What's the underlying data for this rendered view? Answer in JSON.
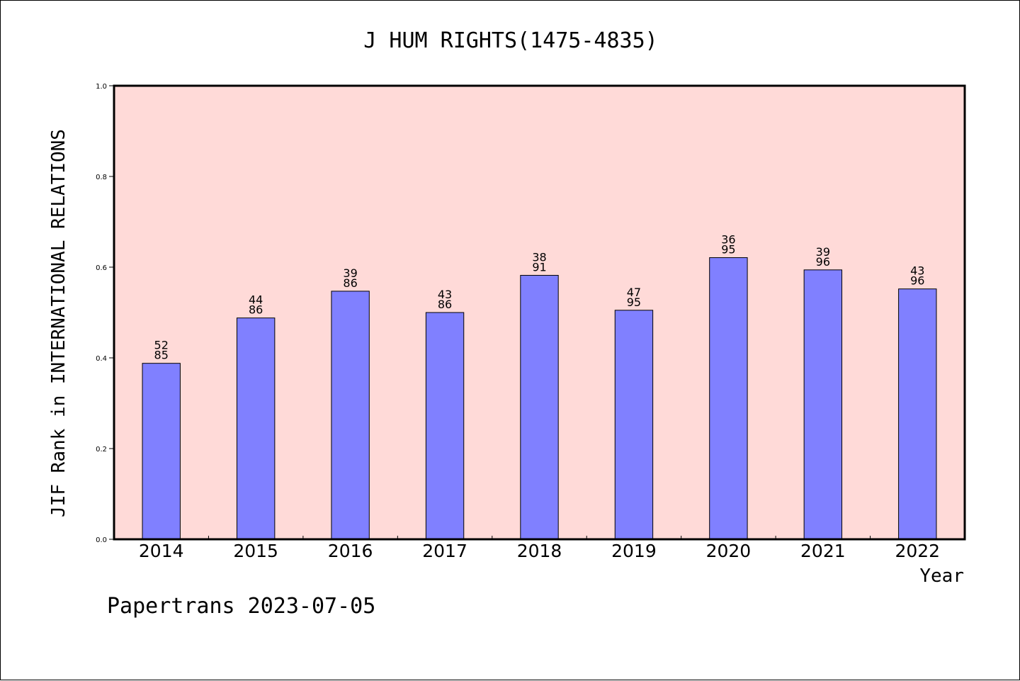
{
  "chart_data": {
    "type": "bar",
    "title": "J HUM RIGHTS(1475-4835)",
    "ylabel": "JIF Rank in INTERNATIONAL RELATIONS",
    "xlabel": "Year",
    "ylim": [
      0,
      1
    ],
    "y_ticks": [
      "0.0",
      "0.2",
      "0.4",
      "0.6",
      "0.8",
      "1.0"
    ],
    "grid": false,
    "categories": [
      "2014",
      "2015",
      "2016",
      "2017",
      "2018",
      "2019",
      "2020",
      "2021",
      "2022"
    ],
    "values": [
      0.388,
      0.488,
      0.547,
      0.5,
      0.582,
      0.505,
      0.621,
      0.594,
      0.552
    ],
    "ranks": [
      "52",
      "44",
      "39",
      "43",
      "38",
      "47",
      "36",
      "39",
      "43"
    ],
    "totals": [
      "85",
      "86",
      "86",
      "86",
      "91",
      "95",
      "95",
      "96",
      "96"
    ],
    "colors": {
      "plot_bg": "#ffdad8",
      "bar": "#8080ff"
    }
  },
  "footer": {
    "text": "Papertrans 2023-07-05"
  }
}
